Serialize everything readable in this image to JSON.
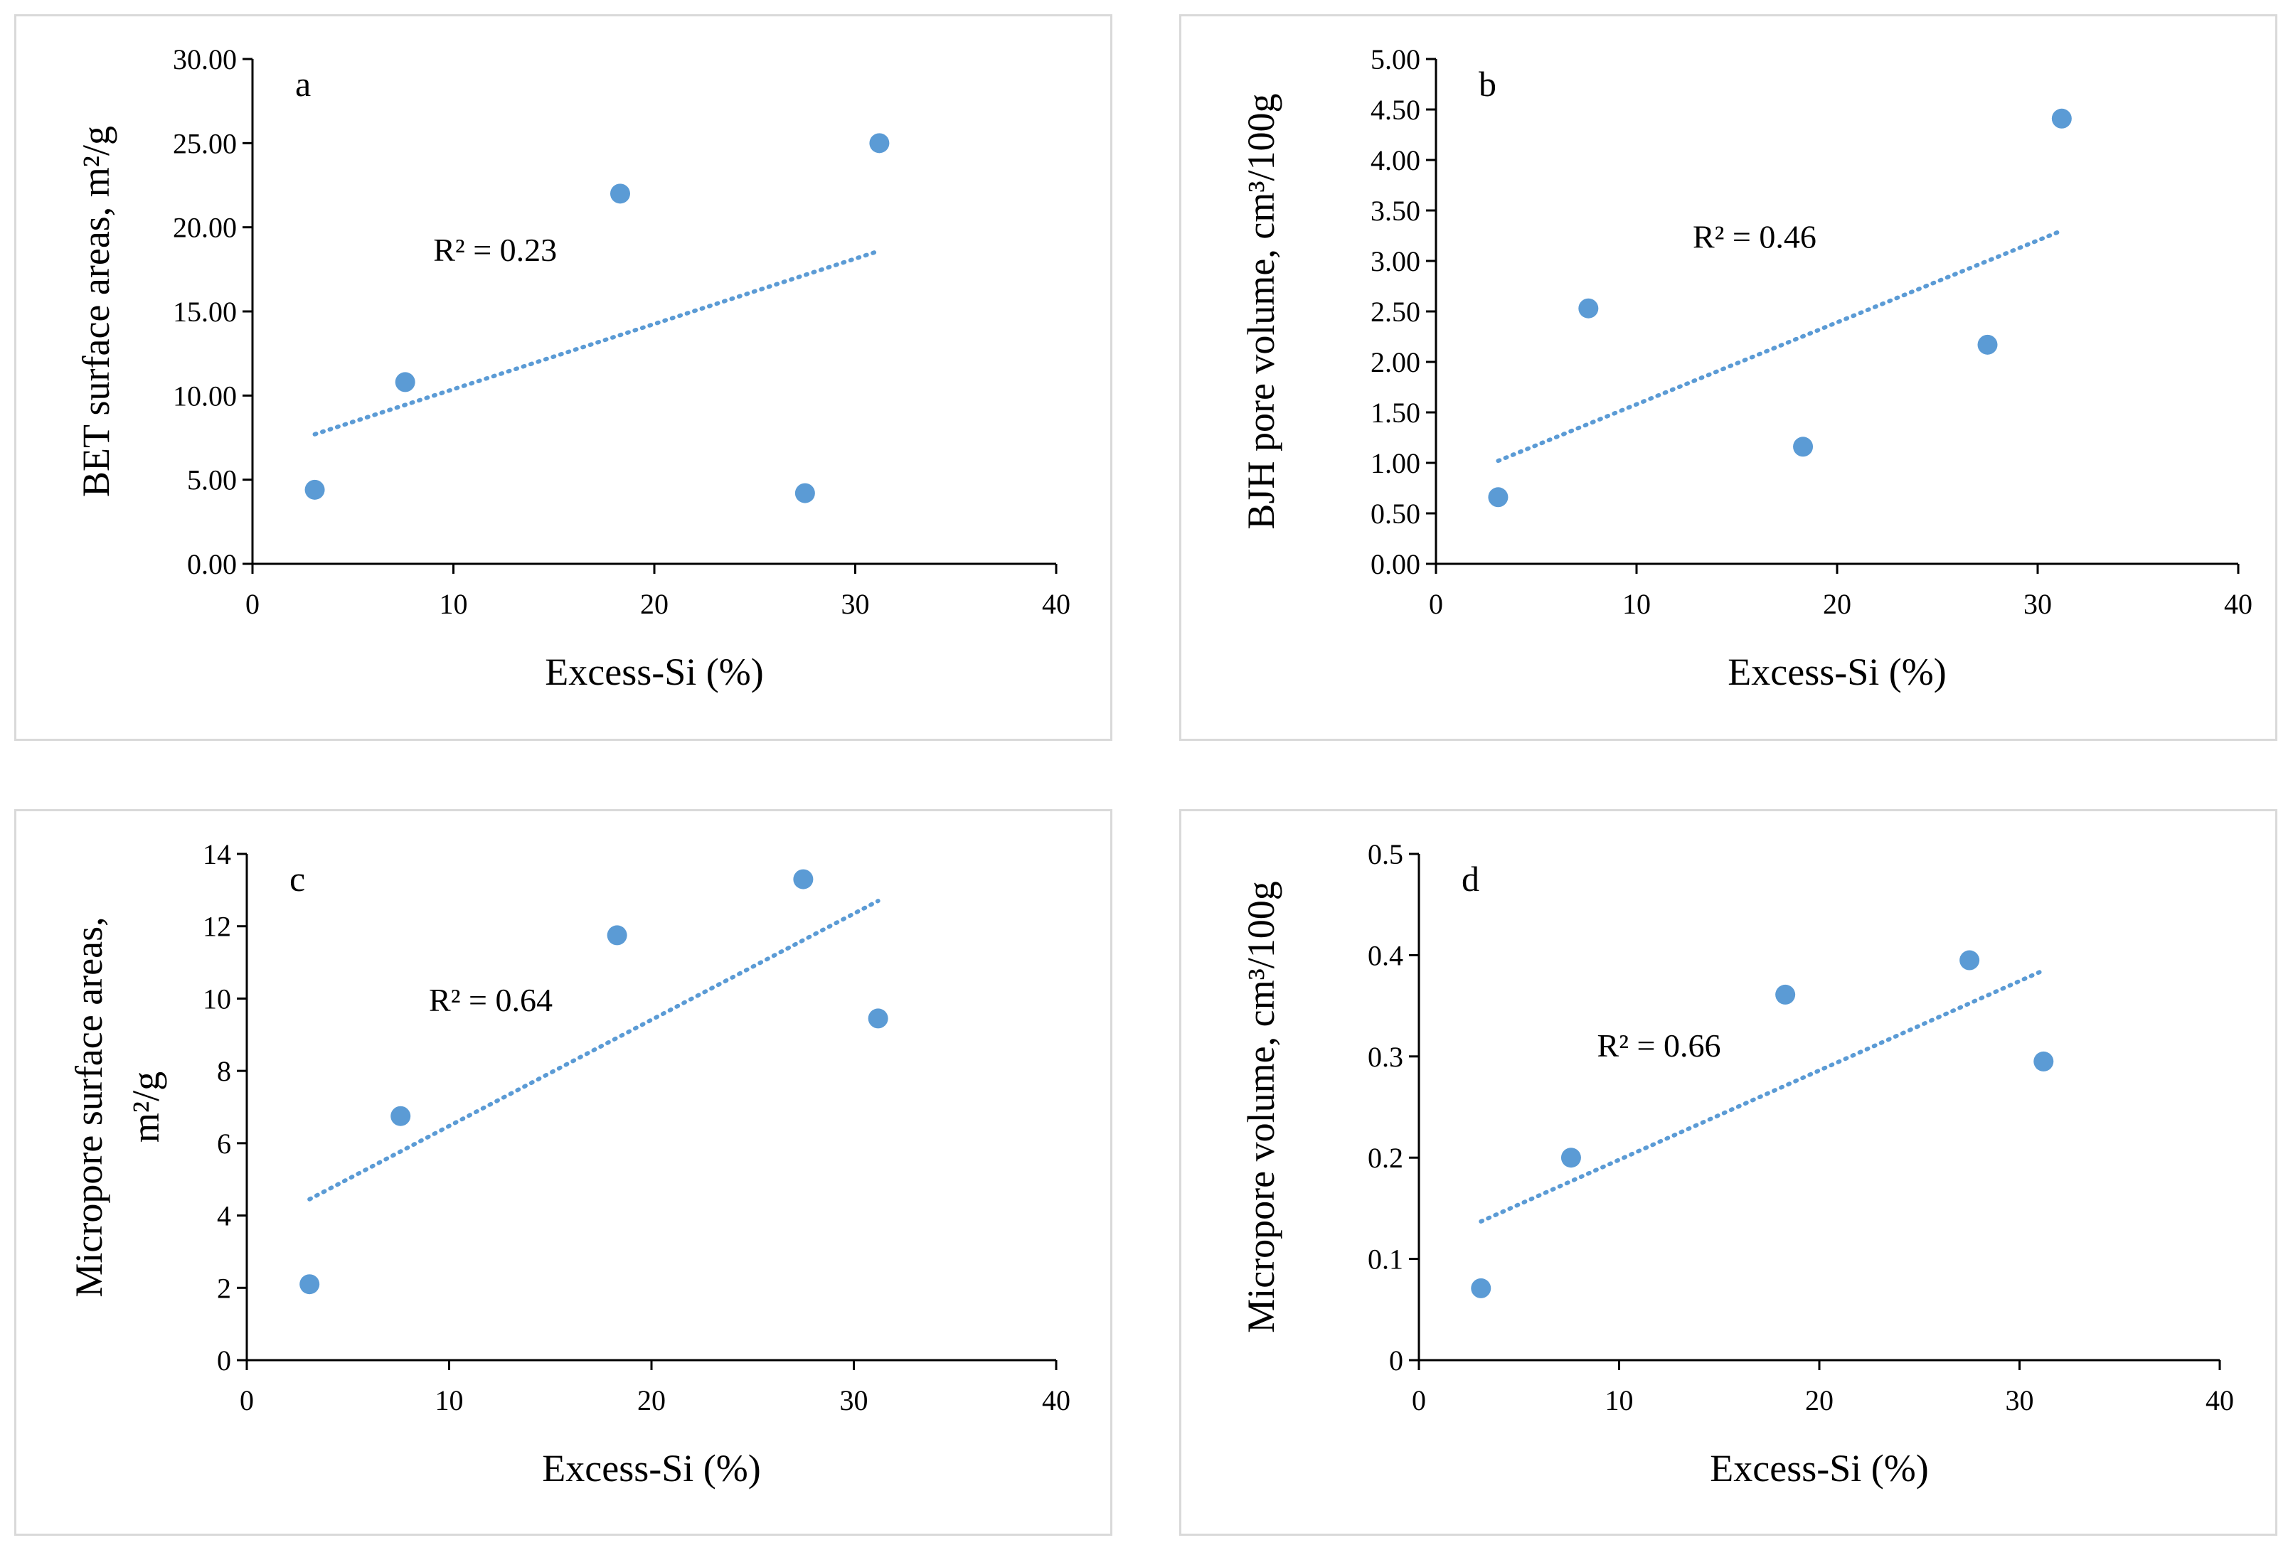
{
  "colors": {
    "marker": "#5b9bd5",
    "trend": "#5b9bd5",
    "axis": "#000000",
    "frame": "#d9d9d9"
  },
  "chart_data": [
    {
      "type": "scatter",
      "panel_label": "a",
      "xlabel": "Excess-Si (%)",
      "ylabel": "BET surface areas, m²/g",
      "xlim": [
        0,
        40
      ],
      "ylim": [
        0,
        30
      ],
      "xticks": [
        "0",
        "10",
        "20",
        "30",
        "40"
      ],
      "yticks": [
        "0.00",
        "5.00",
        "10.00",
        "15.00",
        "20.00",
        "25.00",
        "30.00"
      ],
      "points": [
        {
          "x": 3.1,
          "y": 4.4
        },
        {
          "x": 7.6,
          "y": 10.8
        },
        {
          "x": 18.3,
          "y": 22.0
        },
        {
          "x": 27.5,
          "y": 4.2
        },
        {
          "x": 31.2,
          "y": 25.0
        }
      ],
      "trendline": {
        "style": "dotted-linear",
        "from": [
          3.1,
          7.7
        ],
        "to": [
          31.2,
          18.6
        ]
      },
      "annotation": "R² = 0.23",
      "annotation_pos": [
        9,
        18
      ]
    },
    {
      "type": "scatter",
      "panel_label": "b",
      "xlabel": "Excess-Si (%)",
      "ylabel": "BJH pore volume, cm³/100g",
      "xlim": [
        0,
        40
      ],
      "ylim": [
        0,
        5
      ],
      "xticks": [
        "0",
        "10",
        "20",
        "30",
        "40"
      ],
      "yticks": [
        "0.00",
        "0.50",
        "1.00",
        "1.50",
        "2.00",
        "2.50",
        "3.00",
        "3.50",
        "4.00",
        "4.50",
        "5.00"
      ],
      "points": [
        {
          "x": 3.1,
          "y": 0.66
        },
        {
          "x": 7.6,
          "y": 2.53
        },
        {
          "x": 18.3,
          "y": 1.16
        },
        {
          "x": 27.5,
          "y": 2.17
        },
        {
          "x": 31.2,
          "y": 4.41
        }
      ],
      "trendline": {
        "style": "dotted-linear",
        "from": [
          3.1,
          1.02
        ],
        "to": [
          31.2,
          3.3
        ]
      },
      "annotation": "R² = 0.46",
      "annotation_pos": [
        12.8,
        3.13
      ]
    },
    {
      "type": "scatter",
      "panel_label": "c",
      "xlabel": "Excess-Si (%)",
      "ylabel_lines": [
        "Micropore surface areas,",
        "m²/g"
      ],
      "xlim": [
        0,
        40
      ],
      "ylim": [
        0,
        14
      ],
      "xticks": [
        "0",
        "10",
        "20",
        "30",
        "40"
      ],
      "yticks": [
        "0",
        "2",
        "4",
        "6",
        "8",
        "10",
        "12",
        "14"
      ],
      "points": [
        {
          "x": 3.1,
          "y": 2.1
        },
        {
          "x": 7.6,
          "y": 6.75
        },
        {
          "x": 18.3,
          "y": 11.75
        },
        {
          "x": 27.5,
          "y": 13.3
        },
        {
          "x": 31.2,
          "y": 9.45
        }
      ],
      "trendline": {
        "style": "dotted-linear",
        "from": [
          3.1,
          4.45
        ],
        "to": [
          31.2,
          12.7
        ]
      },
      "annotation": "R² = 0.64",
      "annotation_pos": [
        9,
        9.65
      ]
    },
    {
      "type": "scatter",
      "panel_label": "d",
      "xlabel": "Excess-Si (%)",
      "ylabel": "Micropore volume, cm³/100g",
      "xlim": [
        0,
        40
      ],
      "ylim": [
        0,
        0.5
      ],
      "xticks": [
        "0",
        "10",
        "20",
        "30",
        "40"
      ],
      "yticks": [
        "0",
        "0.1",
        "0.2",
        "0.3",
        "0.4",
        "0.5"
      ],
      "points": [
        {
          "x": 3.1,
          "y": 0.071
        },
        {
          "x": 7.6,
          "y": 0.2
        },
        {
          "x": 18.3,
          "y": 0.361
        },
        {
          "x": 27.5,
          "y": 0.395
        },
        {
          "x": 31.2,
          "y": 0.295
        }
      ],
      "trendline": {
        "style": "dotted-linear",
        "from": [
          3.1,
          0.137
        ],
        "to": [
          31.2,
          0.385
        ]
      },
      "annotation": "R² = 0.66",
      "annotation_pos": [
        8.9,
        0.3
      ]
    }
  ]
}
